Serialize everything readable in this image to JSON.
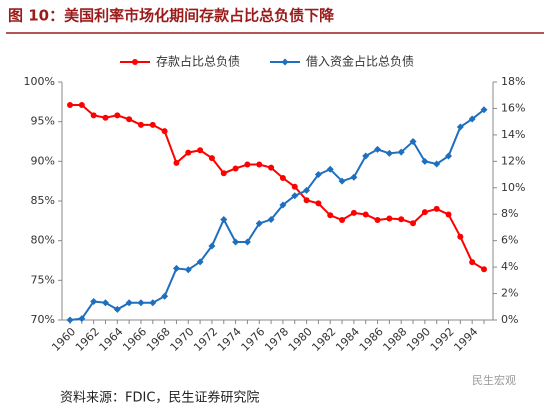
{
  "chart_data": {
    "type": "line",
    "title": "图 10：美国利率市场化期间存款占比总负债下降",
    "source": "资料来源：FDIC，民生证券研究院",
    "watermark": "民生宏观",
    "categories": [
      "1960",
      null,
      "1962",
      null,
      "1964",
      null,
      "1966",
      null,
      "1968",
      null,
      "1970",
      null,
      "1972",
      null,
      "1974",
      null,
      "1976",
      null,
      "1978",
      null,
      "1980",
      null,
      "1982",
      null,
      "1984",
      null,
      "1986",
      null,
      "1988",
      null,
      "1990",
      null,
      "1992",
      null,
      "1994",
      null
    ],
    "series": [
      {
        "name": "存款占比总负债",
        "color": "#ff0000",
        "marker": "circle",
        "values": [
          97.1,
          97.1,
          95.8,
          95.5,
          95.8,
          95.3,
          94.6,
          94.6,
          93.8,
          89.8,
          91.1,
          91.4,
          90.4,
          88.5,
          89.1,
          89.6,
          89.6,
          89.2,
          87.9,
          86.8,
          85.1,
          84.7,
          83.2,
          82.6,
          83.5,
          83.3,
          82.6,
          82.8,
          82.7,
          82.2,
          83.6,
          84.0,
          83.3,
          80.5,
          77.3,
          76.4
        ]
      },
      {
        "name": "借入资金占比总负债",
        "color": "#1f6fc0",
        "marker": "diamond",
        "axis": "y2",
        "values": [
          0.0,
          0.1,
          1.4,
          1.3,
          0.8,
          1.3,
          1.3,
          1.3,
          1.8,
          3.9,
          3.8,
          4.4,
          5.6,
          7.6,
          5.9,
          5.9,
          7.3,
          7.6,
          8.7,
          9.4,
          9.8,
          11.0,
          11.4,
          10.5,
          10.8,
          12.4,
          12.9,
          12.6,
          12.7,
          13.5,
          12.0,
          11.8,
          12.4,
          14.6,
          15.2,
          15.9
        ]
      }
    ],
    "ylim": [
      70,
      100
    ],
    "yticks": [
      {
        "value": 70,
        "label": "70%"
      },
      {
        "value": 75,
        "label": "75%"
      },
      {
        "value": 80,
        "label": "80%"
      },
      {
        "value": 85,
        "label": "85%"
      },
      {
        "value": 90,
        "label": "90%"
      },
      {
        "value": 95,
        "label": "95%"
      },
      {
        "value": 100,
        "label": "100%"
      }
    ],
    "y2lim": [
      0,
      18
    ],
    "y2ticks": [
      {
        "value": 0,
        "label": "0%"
      },
      {
        "value": 2,
        "label": "2%"
      },
      {
        "value": 4,
        "label": "4%"
      },
      {
        "value": 6,
        "label": "6%"
      },
      {
        "value": 8,
        "label": "8%"
      },
      {
        "value": 10,
        "label": "10%"
      },
      {
        "value": 12,
        "label": "12%"
      },
      {
        "value": 14,
        "label": "14%"
      },
      {
        "value": 16,
        "label": "16%"
      },
      {
        "value": 18,
        "label": "18%"
      }
    ],
    "grid": false
  }
}
